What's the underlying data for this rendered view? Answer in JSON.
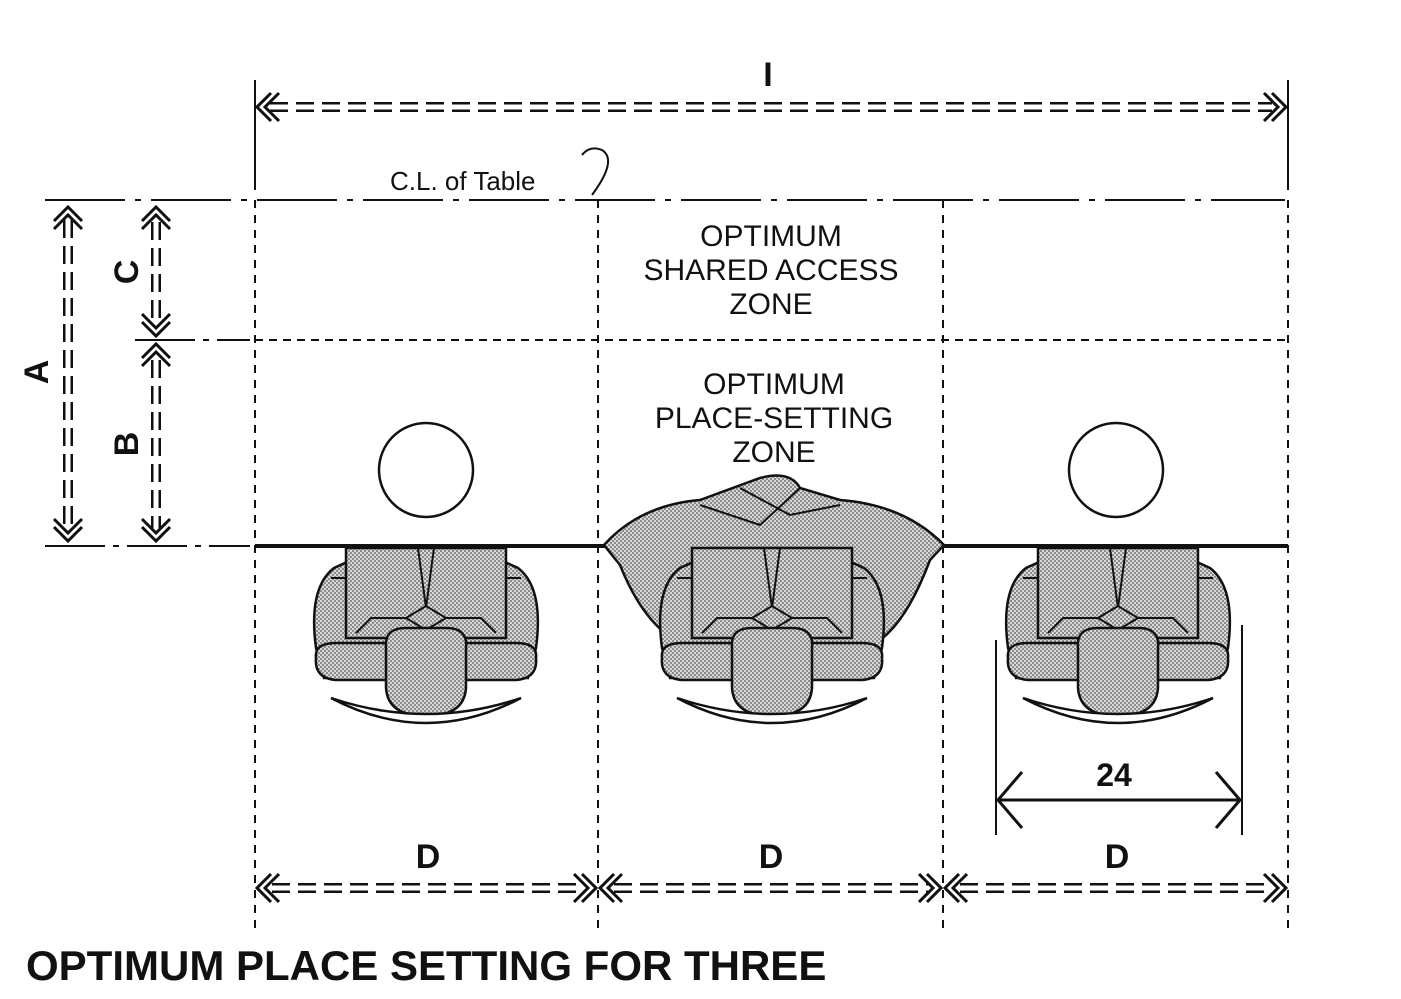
{
  "diagram": {
    "caption": "OPTIMUM PLACE SETTING FOR THREE",
    "centerline_label": "C.L. of Table",
    "zones": {
      "shared_access": [
        "OPTIMUM",
        "SHARED ACCESS",
        "ZONE"
      ],
      "place_setting": [
        "OPTIMUM",
        "PLACE-SETTING",
        "ZONE"
      ]
    },
    "dimensions": {
      "overall_length": "I",
      "A": "A",
      "B": "B",
      "C": "C",
      "D": [
        "D",
        "D",
        "D"
      ],
      "elbow_width": "24"
    },
    "colors": {
      "ink": "#111111",
      "fill_stipple": "#bdbdbd",
      "background": "#ffffff"
    }
  }
}
